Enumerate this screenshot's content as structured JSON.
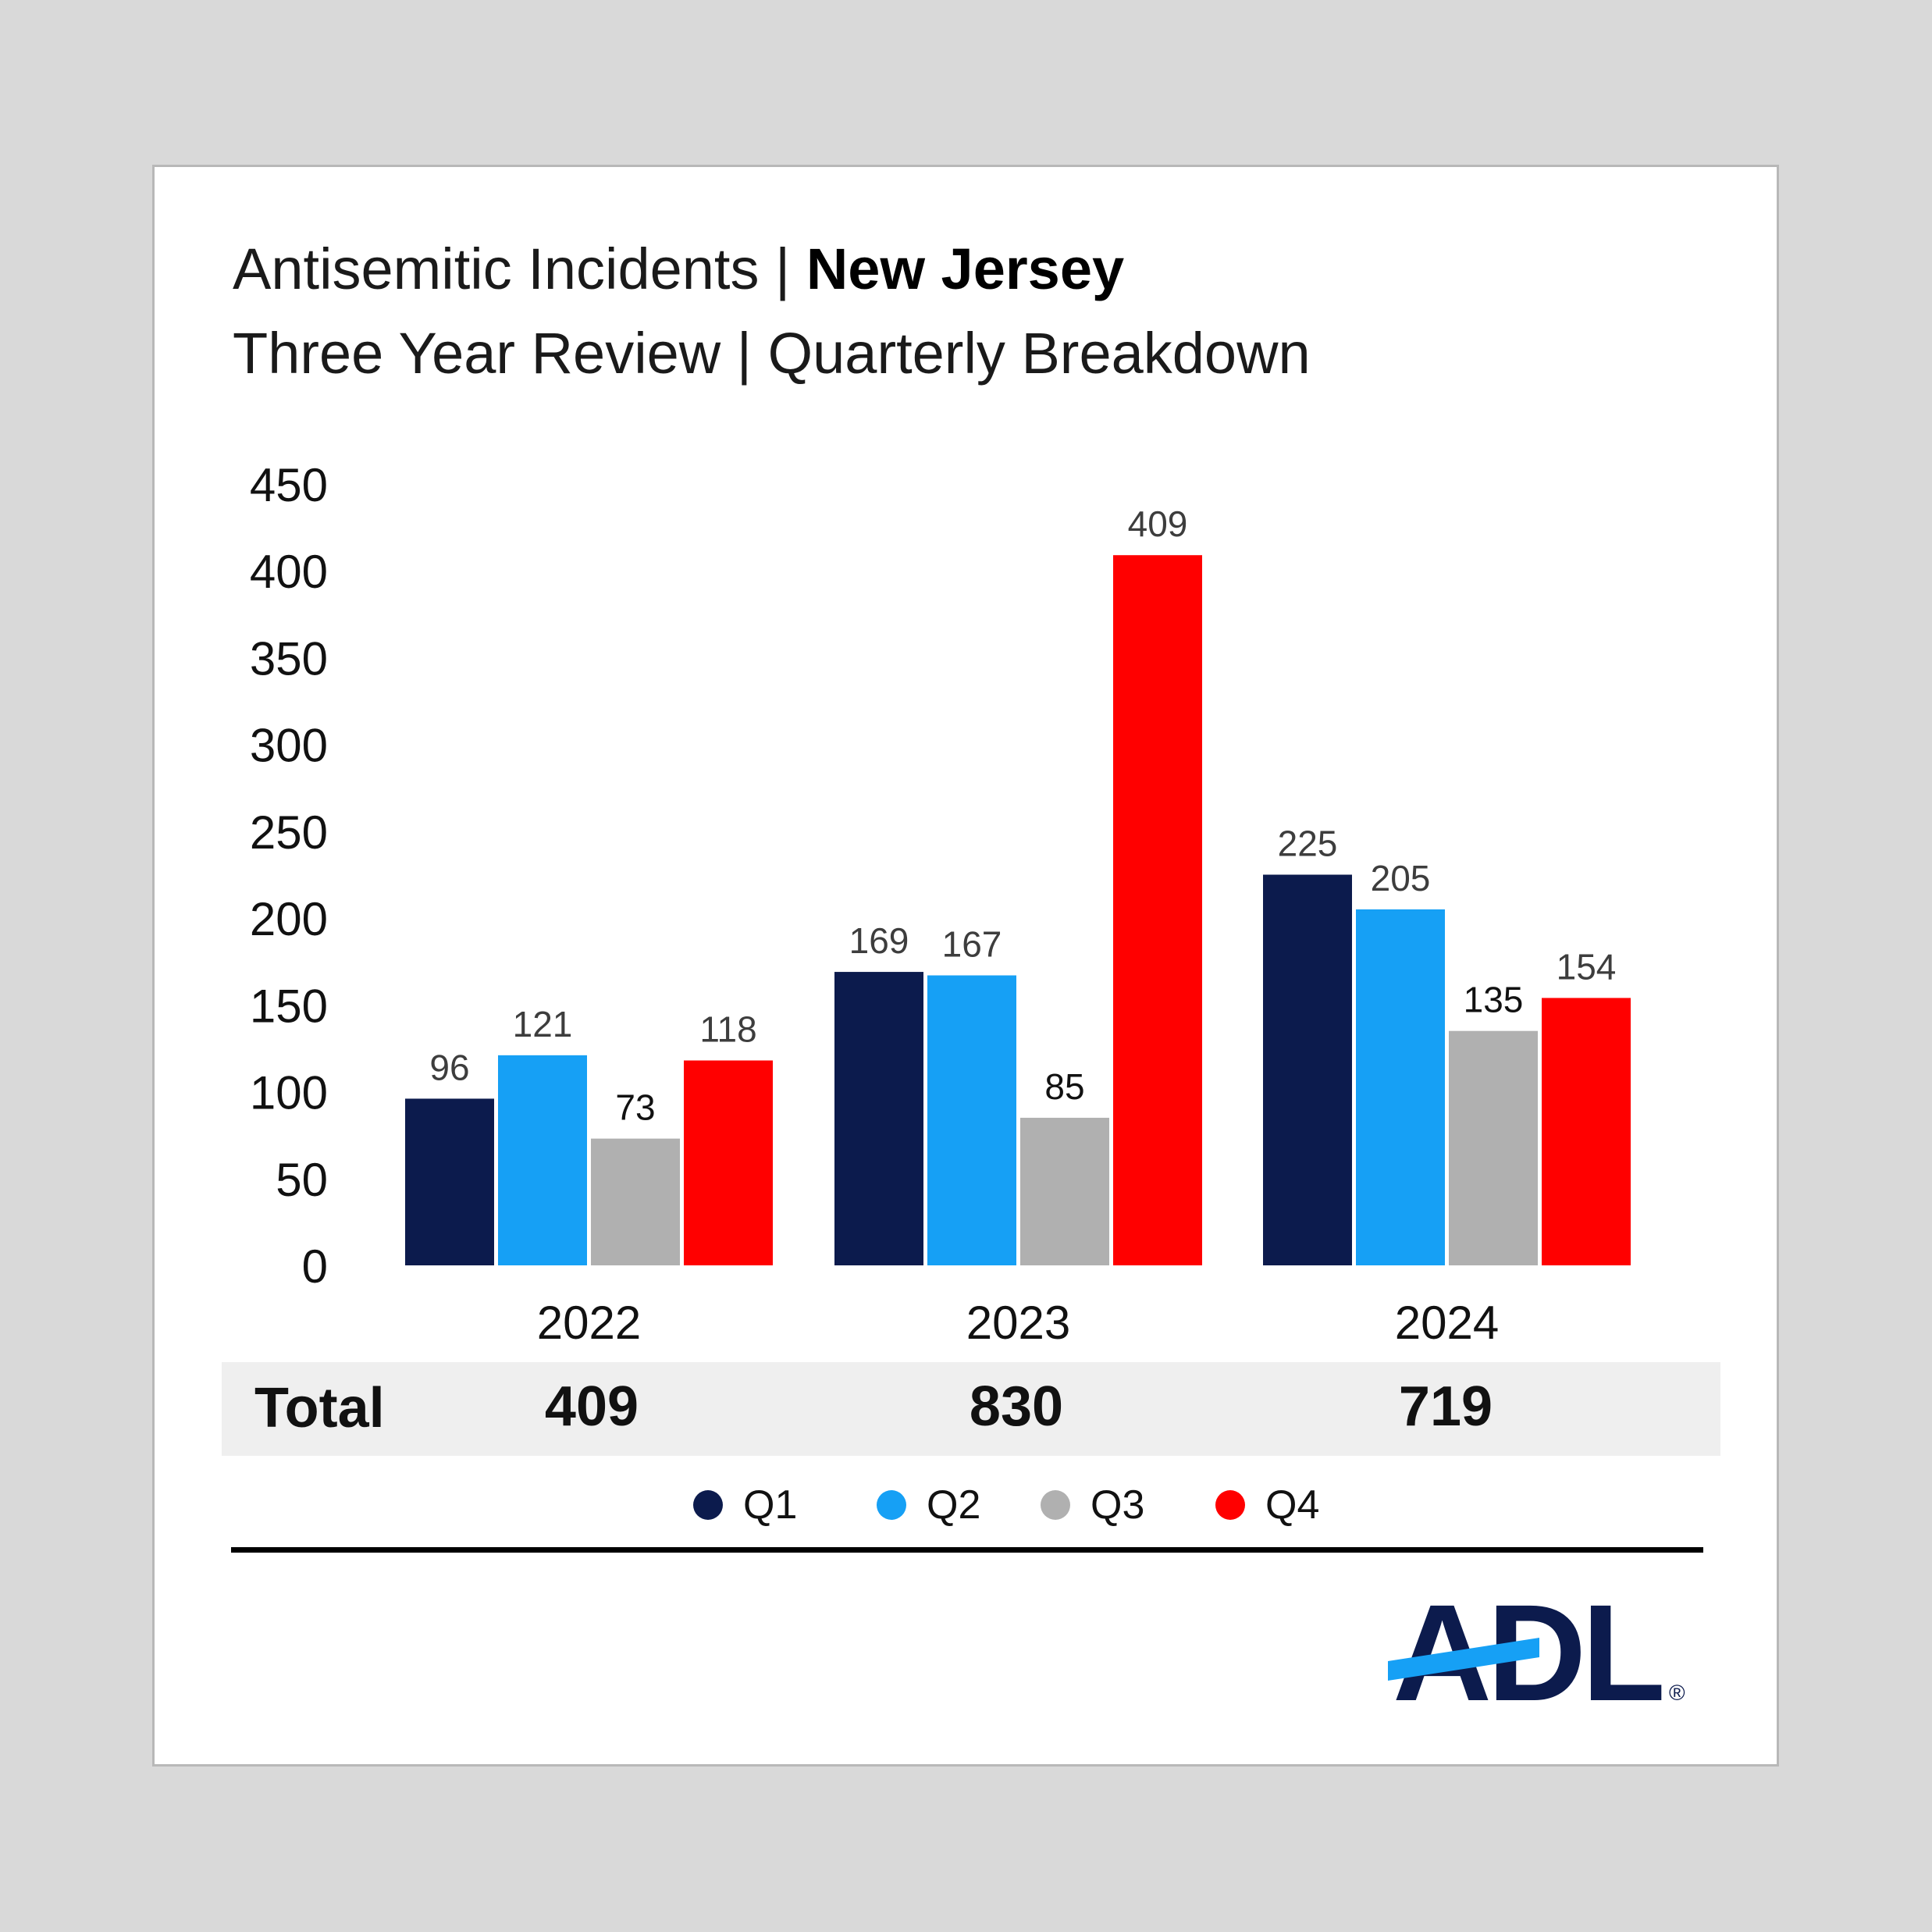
{
  "colors": {
    "background": "#d9d9d9",
    "card": "#ffffff",
    "q1": "#0c1b4d",
    "q2": "#16a0f5",
    "q3": "#b0b0b0",
    "q4": "#ff0000",
    "logo_navy": "#0c1b4d",
    "logo_blue": "#16a0f5"
  },
  "header": {
    "title_prefix": "Antisemitic Incidents | ",
    "title_bold": "New Jersey",
    "subtitle": "Three Year Review | Quarterly Breakdown"
  },
  "chart_data": {
    "type": "bar",
    "categories": [
      "2022",
      "2023",
      "2024"
    ],
    "series": [
      {
        "name": "Q1",
        "values": [
          96,
          169,
          225
        ]
      },
      {
        "name": "Q2",
        "values": [
          121,
          167,
          205
        ]
      },
      {
        "name": "Q3",
        "values": [
          73,
          85,
          135
        ]
      },
      {
        "name": "Q4",
        "values": [
          118,
          409,
          154
        ]
      }
    ],
    "yticks": [
      "0",
      "50",
      "100",
      "150",
      "200",
      "250",
      "300",
      "350",
      "400",
      "450"
    ],
    "ylim": [
      0,
      450
    ],
    "grid": false,
    "legend": "bottom"
  },
  "totals": {
    "label": "Total",
    "values": [
      "409",
      "830",
      "719"
    ]
  },
  "logo": {
    "text": "ADL",
    "mark": "®"
  }
}
